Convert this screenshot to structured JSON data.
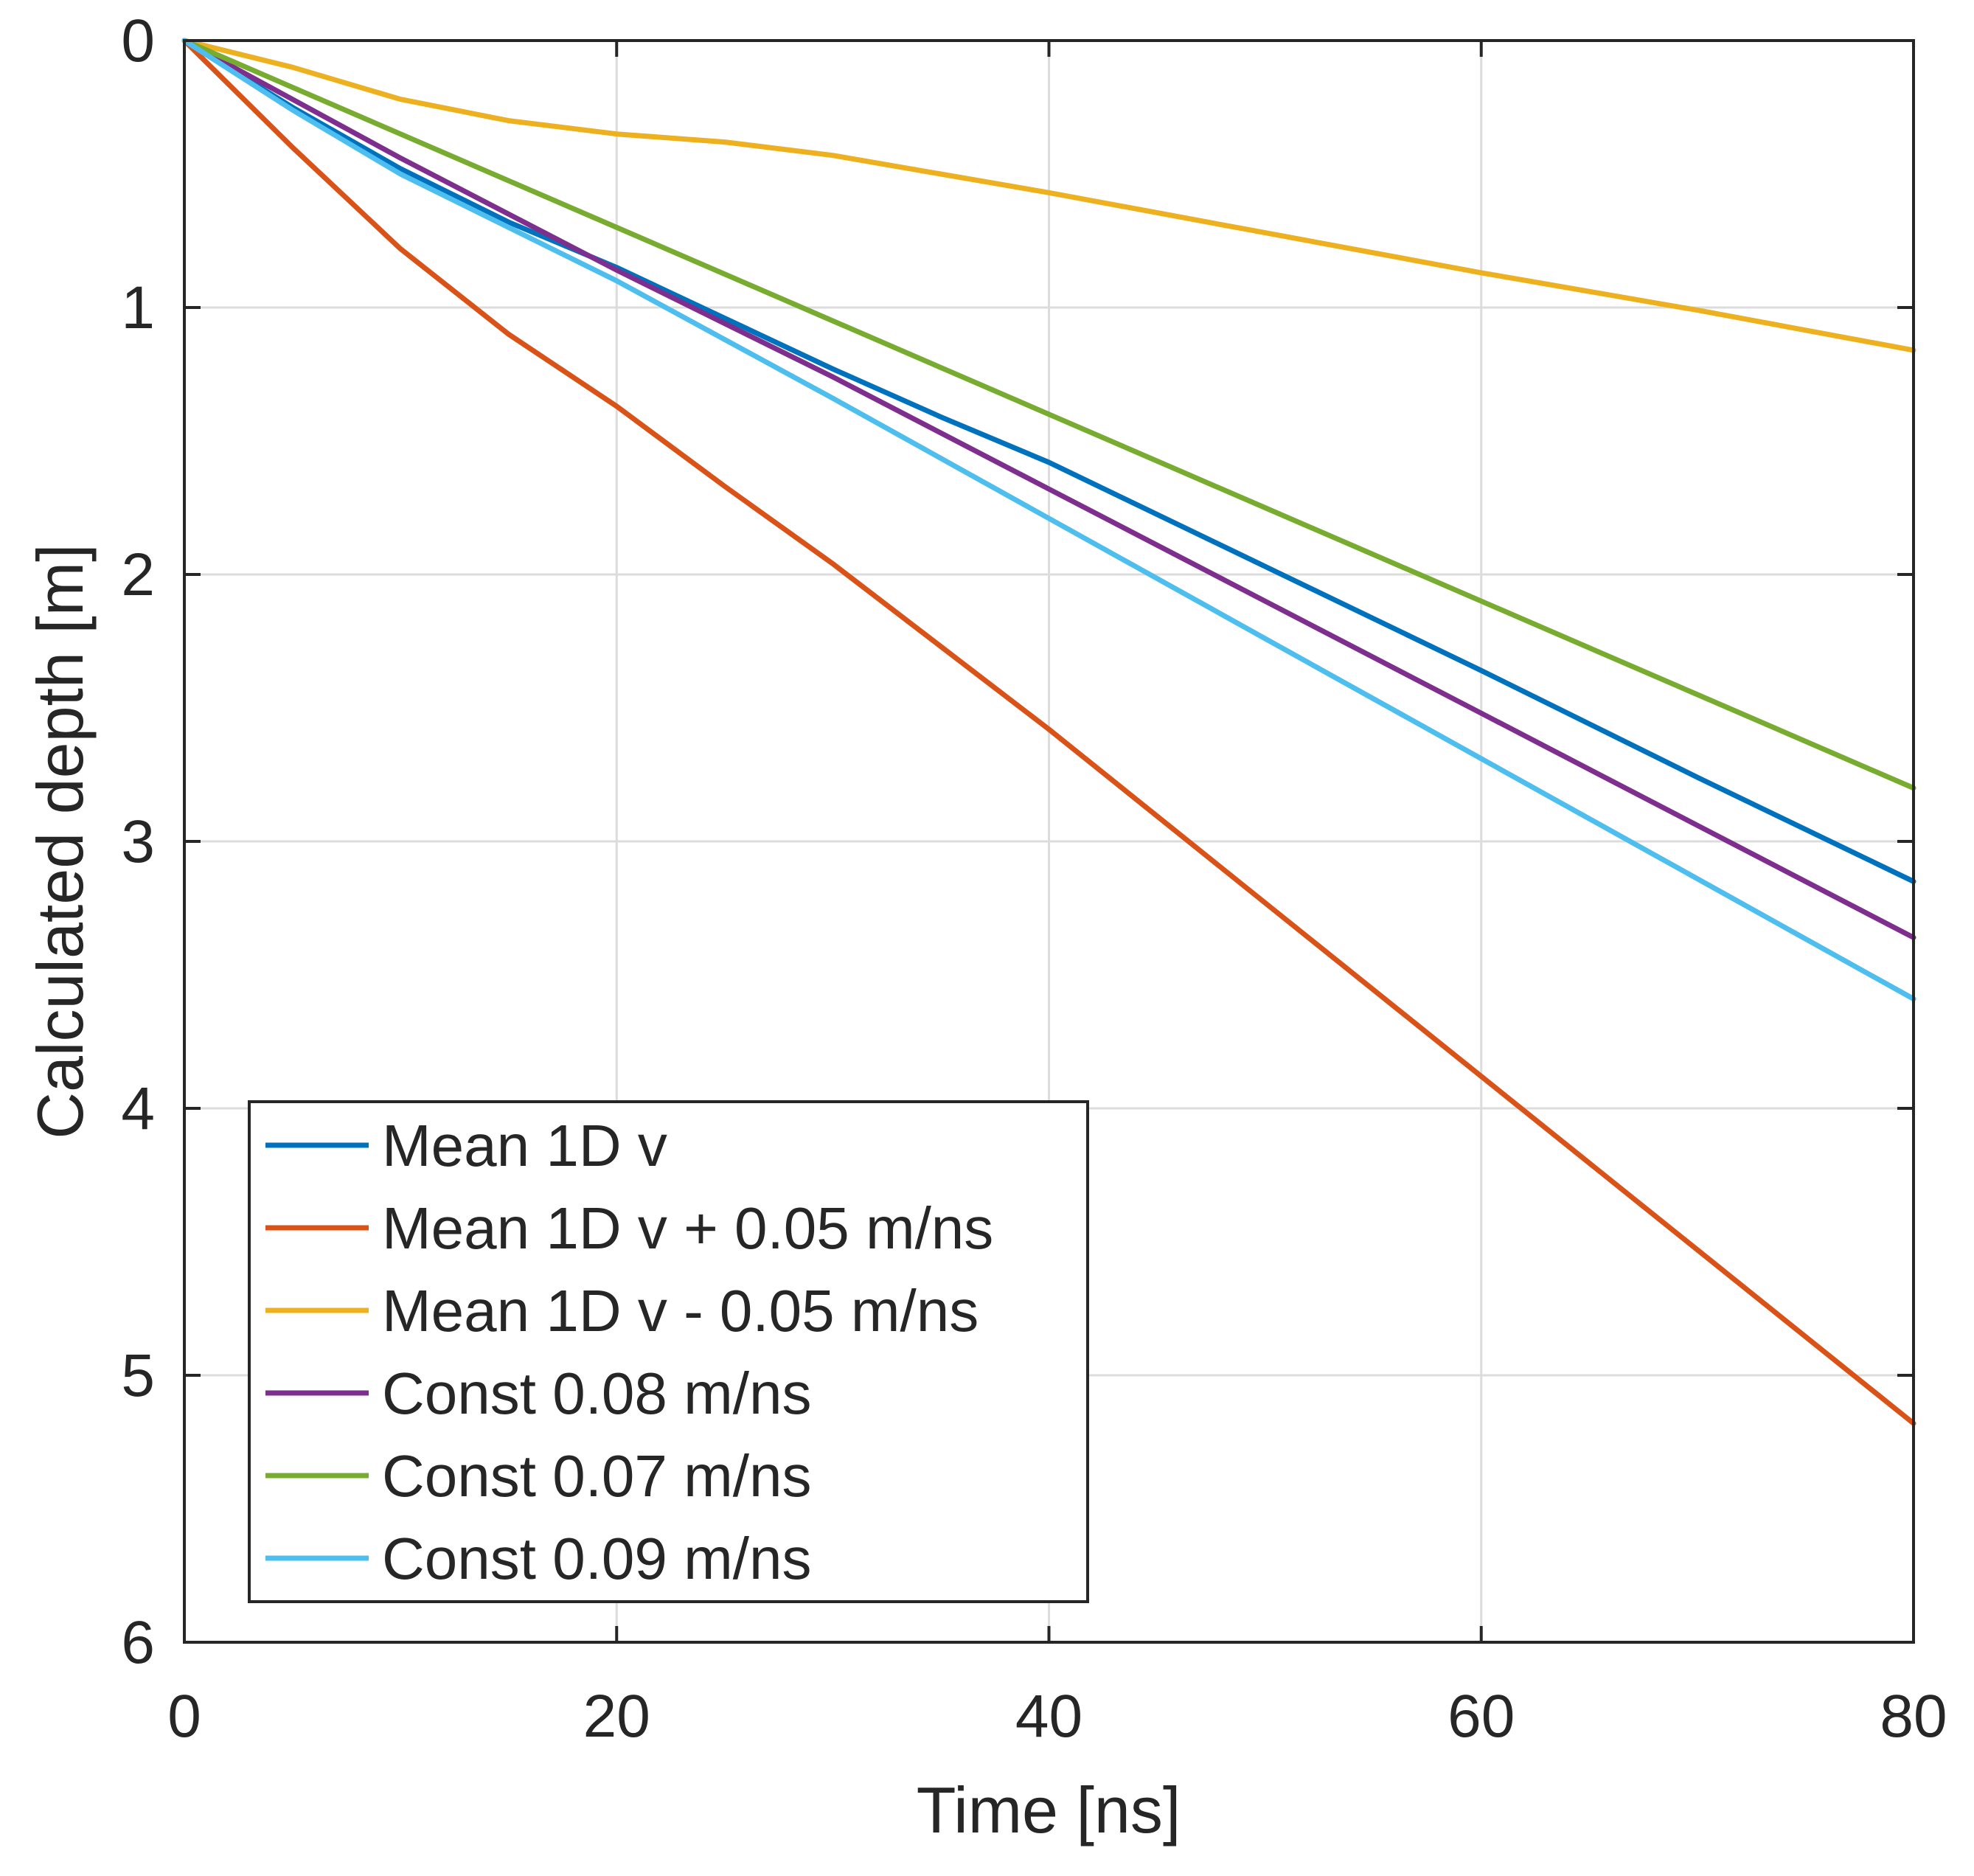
{
  "chart_data": {
    "type": "line",
    "title": "",
    "xlabel": "Time [ns]",
    "ylabel": "Calculated depth [m]",
    "xlim": [
      0,
      80
    ],
    "ylim": [
      0,
      6
    ],
    "y_reversed": true,
    "grid": true,
    "x_ticks": [
      0,
      20,
      40,
      60,
      80
    ],
    "y_ticks": [
      0,
      1,
      2,
      3,
      4,
      5,
      6
    ],
    "x_tick_labels": [
      "0",
      "20",
      "40",
      "60",
      "80"
    ],
    "y_tick_labels": [
      "0",
      "1",
      "2",
      "3",
      "4",
      "5",
      "6"
    ],
    "legend_position": "bottom-left",
    "series": [
      {
        "name": "Mean 1D v",
        "color": "#0072BD",
        "x": [
          0,
          5,
          10,
          15,
          20,
          25,
          30,
          35,
          40,
          50,
          60,
          70,
          80
        ],
        "y": [
          0,
          0.25,
          0.48,
          0.68,
          0.85,
          1.04,
          1.23,
          1.41,
          1.58,
          1.97,
          2.36,
          2.76,
          3.15
        ]
      },
      {
        "name": "Mean 1D v + 0.05 m/ns",
        "color": "#D95319",
        "x": [
          0,
          5,
          10,
          15,
          20,
          25,
          30,
          35,
          40,
          50,
          60,
          70,
          80
        ],
        "y": [
          0,
          0.4,
          0.78,
          1.1,
          1.37,
          1.67,
          1.96,
          2.27,
          2.58,
          3.23,
          3.88,
          4.53,
          5.18
        ]
      },
      {
        "name": "Mean 1D v - 0.05 m/ns",
        "color": "#EDB120",
        "x": [
          0,
          5,
          10,
          15,
          20,
          25,
          30,
          35,
          40,
          50,
          60,
          70,
          80
        ],
        "y": [
          0,
          0.1,
          0.22,
          0.3,
          0.35,
          0.38,
          0.43,
          0.5,
          0.57,
          0.72,
          0.87,
          1.01,
          1.16
        ]
      },
      {
        "name": "Const 0.08 m/ns",
        "color": "#7E2F8E",
        "x": [
          0,
          10,
          20,
          30,
          40,
          50,
          60,
          70,
          80
        ],
        "y": [
          0,
          0.44,
          0.86,
          1.26,
          1.68,
          2.1,
          2.52,
          2.94,
          3.36
        ]
      },
      {
        "name": "Const 0.07 m/ns",
        "color": "#77AC30",
        "x": [
          0,
          10,
          20,
          30,
          40,
          50,
          60,
          70,
          80
        ],
        "y": [
          0,
          0.35,
          0.7,
          1.05,
          1.4,
          1.75,
          2.1,
          2.45,
          2.8
        ]
      },
      {
        "name": "Const 0.09 m/ns",
        "color": "#4DBEEE",
        "x": [
          0,
          5,
          10,
          15,
          20,
          25,
          30,
          40,
          50,
          60,
          70,
          80
        ],
        "y": [
          0,
          0.26,
          0.5,
          0.7,
          0.9,
          1.12,
          1.34,
          1.79,
          2.24,
          2.69,
          3.14,
          3.59
        ]
      }
    ]
  }
}
